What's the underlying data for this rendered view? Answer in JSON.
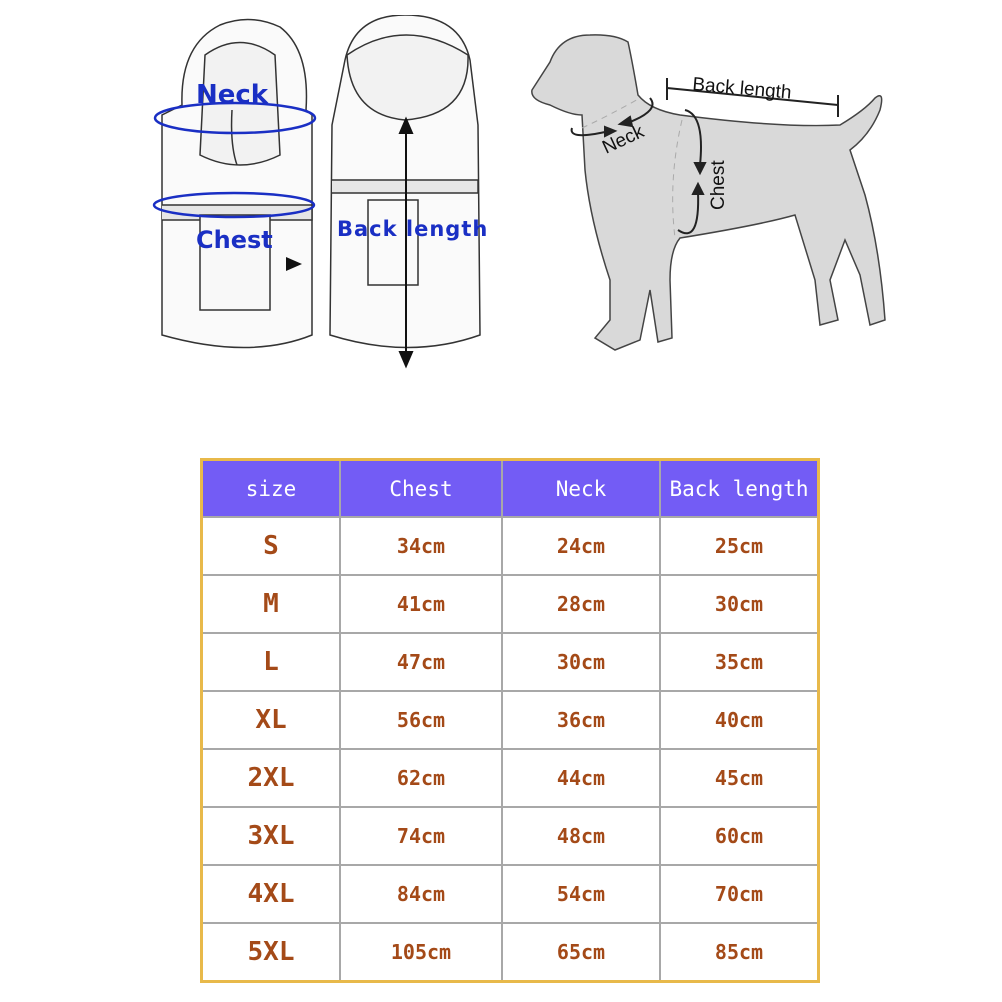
{
  "coat_diagram": {
    "neck_label": "Neck",
    "chest_label": "Chest",
    "back_length_label": "Back length",
    "label_color": "#1a2fc4"
  },
  "dog_diagram": {
    "back_length_label": "Back length",
    "neck_label": "Neck",
    "chest_label": "Chest"
  },
  "size_table": {
    "header_color": "#735cf5",
    "border_color": "#e8b94a",
    "value_color": "#a44a18",
    "headers": [
      "size",
      "Chest",
      "Neck",
      "Back length"
    ],
    "rows": [
      [
        "S",
        "34cm",
        "24cm",
        "25cm"
      ],
      [
        "M",
        "41cm",
        "28cm",
        "30cm"
      ],
      [
        "L",
        "47cm",
        "30cm",
        "35cm"
      ],
      [
        "XL",
        "56cm",
        "36cm",
        "40cm"
      ],
      [
        "2XL",
        "62cm",
        "44cm",
        "45cm"
      ],
      [
        "3XL",
        "74cm",
        "48cm",
        "60cm"
      ],
      [
        "4XL",
        "84cm",
        "54cm",
        "70cm"
      ],
      [
        "5XL",
        "105cm",
        "65cm",
        "85cm"
      ]
    ]
  }
}
